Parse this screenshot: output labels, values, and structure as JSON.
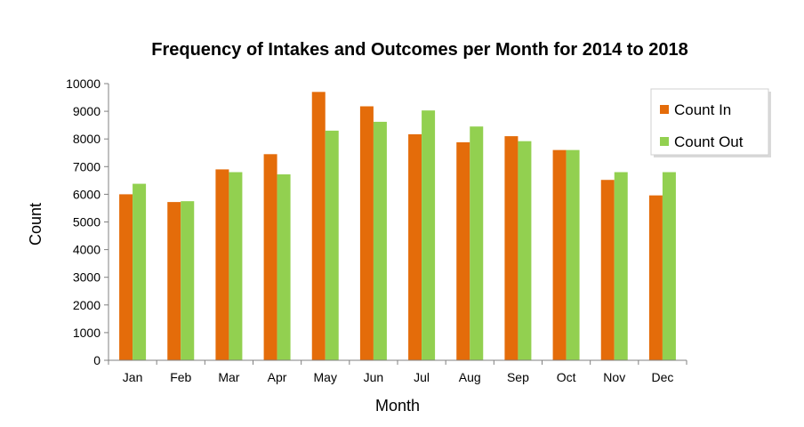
{
  "chart_data": {
    "type": "bar",
    "title": "Frequency  of Intakes and Outcomes per Month for 2014 to 2018",
    "xlabel": "Month",
    "ylabel": "Count",
    "categories": [
      "Jan",
      "Feb",
      "Mar",
      "Apr",
      "May",
      "Jun",
      "Jul",
      "Aug",
      "Sep",
      "Oct",
      "Nov",
      "Dec"
    ],
    "series": [
      {
        "name": "Count In",
        "color": "#E46C0A",
        "values": [
          6000,
          5720,
          6900,
          7450,
          9700,
          9180,
          8170,
          7880,
          8100,
          7600,
          6520,
          5960
        ]
      },
      {
        "name": "Count Out",
        "color": "#92D050",
        "values": [
          6380,
          5750,
          6800,
          6720,
          8300,
          8620,
          9030,
          8450,
          7920,
          7600,
          6800,
          6800
        ]
      }
    ],
    "ylim": [
      0,
      10000
    ],
    "yticks": [
      0,
      1000,
      2000,
      3000,
      4000,
      5000,
      6000,
      7000,
      8000,
      9000,
      10000
    ],
    "grid": false,
    "legend_position": "top-right"
  }
}
